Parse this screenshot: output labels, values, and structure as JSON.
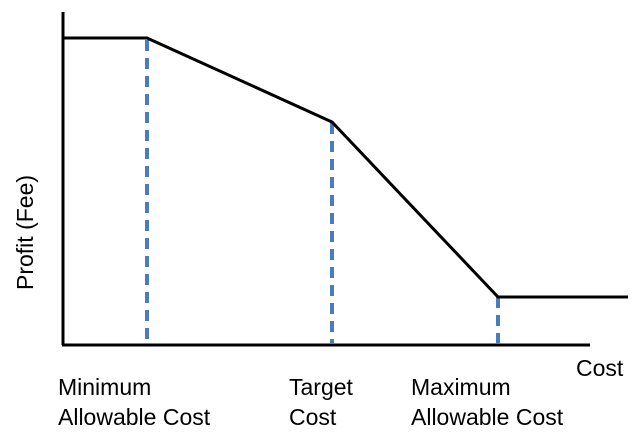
{
  "diagram": {
    "y_axis_label": "Profit (Fee)",
    "x_axis_label": "Cost",
    "markers": [
      {
        "line1": "Minimum",
        "line2": "Allowable Cost"
      },
      {
        "line1": "Target",
        "line2": "Cost"
      },
      {
        "line1": "Maximum",
        "line2": "Allowable Cost"
      }
    ],
    "colors": {
      "curve": "#000000",
      "axes": "#000000",
      "guide": "#4a7ebb"
    }
  }
}
